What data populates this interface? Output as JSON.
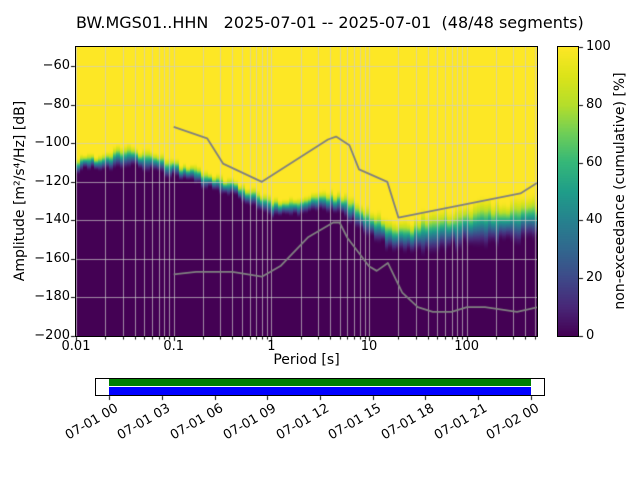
{
  "figure": {
    "title": "BW.MGS01..HHN   2025-07-01 -- 2025-07-01  (48/48 segments)"
  },
  "axes": {
    "xlabel": "Period [s]",
    "ylabel": "Amplitude [m²/s⁴/Hz] [dB]",
    "xscale": "log",
    "xlim": [
      0.01,
      525
    ],
    "ylim": [
      -200,
      -50
    ],
    "xtick_values": [
      0.01,
      0.1,
      1,
      10,
      100
    ],
    "xtick_labels": [
      "0.01",
      "0.1",
      "1",
      "10",
      "100"
    ],
    "ytick_values": [
      -60,
      -80,
      -100,
      -120,
      -140,
      -160,
      -180,
      -200
    ],
    "ytick_labels": [
      "−60",
      "−80",
      "−100",
      "−120",
      "−140",
      "−160",
      "−180",
      "−200"
    ],
    "grid_color": "rgba(205,205,205,0.85)"
  },
  "colorbar": {
    "label": "non-exceedance (cumulative) [%]",
    "tick_values": [
      0,
      20,
      40,
      60,
      80,
      100
    ],
    "tick_labels": [
      "0",
      "20",
      "40",
      "60",
      "80",
      "100"
    ],
    "colormap": "viridis",
    "stops": [
      "#440154",
      "#482878",
      "#3e4a89",
      "#31688e",
      "#26828e",
      "#1f9e89",
      "#35b779",
      "#6ece58",
      "#b5de2b",
      "#dce319",
      "#fde725"
    ]
  },
  "chart_data": {
    "type": "heatmap",
    "subtype": "ppsd-cumulative-histogram",
    "station": "BW.MGS01..HHN",
    "date_start": "2025-07-01",
    "date_end": "2025-07-01",
    "segments_used": 48,
    "segments_total": 48,
    "xlabel": "Period [s]",
    "ylabel": "Amplitude [m²/s⁴/Hz] [dB]",
    "colorbar_label": "non-exceedance (cumulative) [%]",
    "xlim": [
      0.01,
      525
    ],
    "ylim": [
      -200,
      -50
    ],
    "distribution": {
      "note": "Approximate PSD probability distribution vs period: dB level of 50% non-exceedance (center) and half-width of the transition band read from the plot; non-exceedance is ~100% (yellow) above center+halfwidth and ~0% (dark purple) below center-halfwidth.",
      "period_s": [
        0.01,
        0.02,
        0.032,
        0.05,
        0.1,
        0.2,
        0.32,
        0.5,
        0.7,
        1.0,
        2.0,
        3.2,
        5.0,
        7.1,
        10,
        16,
        20,
        32,
        50,
        100,
        158,
        316,
        525
      ],
      "center_db": [
        -111,
        -109,
        -106,
        -108,
        -113,
        -118,
        -121,
        -125,
        -129,
        -133,
        -132,
        -130,
        -131,
        -135,
        -141,
        -147,
        -148,
        -148,
        -146,
        -142,
        -141,
        -140,
        -139
      ],
      "halfwidth_db": [
        4,
        5,
        6,
        6,
        5,
        5,
        5,
        5,
        5,
        5,
        5,
        5,
        6,
        7,
        8,
        9,
        10,
        11,
        12,
        12,
        12,
        12,
        12
      ]
    },
    "noise_models": {
      "color": "#808080",
      "high_noise_model": {
        "period_s": [
          0.1,
          0.22,
          0.32,
          0.8,
          3.8,
          4.6,
          6.3,
          7.9,
          15.4,
          20.0,
          354.8,
          525
        ],
        "db": [
          -91.5,
          -97.4,
          -110.5,
          -120.0,
          -98.0,
          -96.5,
          -101.0,
          -113.5,
          -120.0,
          -138.5,
          -126.0,
          -120.6
        ]
      },
      "low_noise_model": {
        "period_s": [
          0.1,
          0.17,
          0.4,
          0.8,
          1.24,
          2.4,
          4.3,
          5.0,
          6.0,
          10.0,
          12.0,
          15.6,
          21.9,
          31.6,
          45.0,
          70.0,
          101.0,
          154.0,
          328.0,
          525
        ],
        "db": [
          -168.0,
          -166.7,
          -166.7,
          -169.2,
          -163.7,
          -148.6,
          -141.1,
          -141.1,
          -149.0,
          -163.8,
          -166.2,
          -162.1,
          -177.5,
          -185.0,
          -187.5,
          -187.5,
          -185.0,
          -185.0,
          -187.5,
          -185.1
        ]
      }
    }
  },
  "coverage": {
    "tick_labels": [
      "07-01 00",
      "07-01 03",
      "07-01 06",
      "07-01 09",
      "07-01 12",
      "07-01 15",
      "07-01 18",
      "07-01 21",
      "07-02 00"
    ],
    "tick_hours": [
      0,
      3,
      6,
      9,
      12,
      15,
      18,
      21,
      24
    ],
    "axis_start_hour": -0.75,
    "axis_end_hour": 24.75,
    "bar_start_hour": 0,
    "bar_end_hour": 24,
    "segment_bar_color": "#008000",
    "data_bar_color": "#0000ff"
  }
}
